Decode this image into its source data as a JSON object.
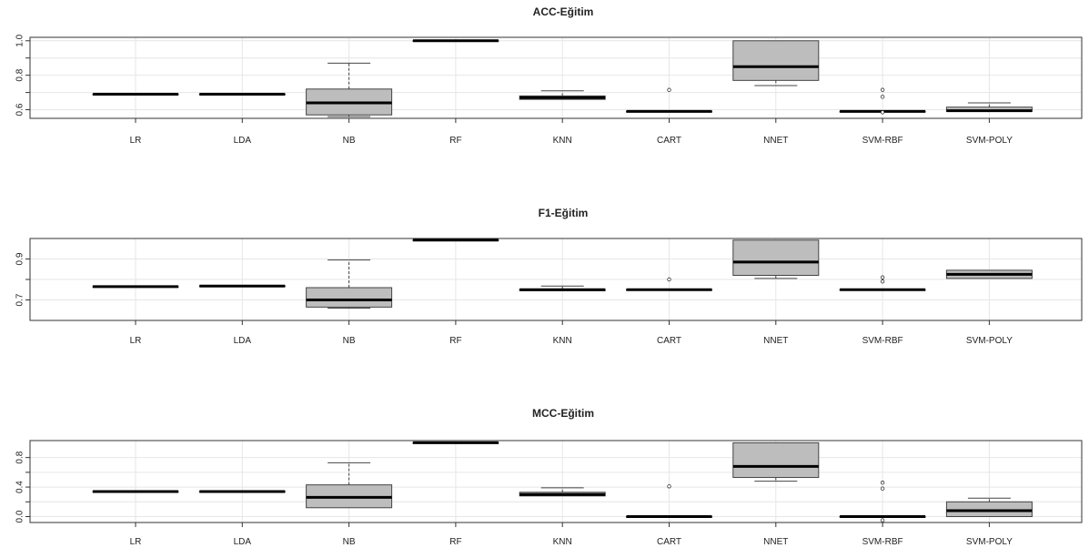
{
  "style": {
    "box_fill": "#bdbdbd",
    "box_stroke": "#444444",
    "median_color": "#000000",
    "grid_color": "#e6e6e6",
    "whisker_style": "dashed"
  },
  "chart_data": [
    {
      "type": "boxplot",
      "title": "ACC-Eğitim",
      "xlabel": "",
      "ylabel": "",
      "ylim": [
        0.55,
        1.02
      ],
      "yticks": [
        0.6,
        0.7,
        0.8,
        0.9,
        1.0
      ],
      "yticklabels": [
        "0.6",
        "",
        "0.8",
        "",
        "1.0"
      ],
      "grid": true,
      "categories": [
        "LR",
        "LDA",
        "NB",
        "RF",
        "KNN",
        "CART",
        "NNET",
        "SVM-RBF",
        "SVM-POLY"
      ],
      "boxes": [
        {
          "min": 0.69,
          "q1": 0.69,
          "median": 0.69,
          "q3": 0.69,
          "max": 0.69,
          "outliers": []
        },
        {
          "min": 0.69,
          "q1": 0.69,
          "median": 0.69,
          "q3": 0.69,
          "max": 0.69,
          "outliers": []
        },
        {
          "min": 0.56,
          "q1": 0.57,
          "median": 0.64,
          "q3": 0.72,
          "max": 0.87,
          "outliers": []
        },
        {
          "min": 1.0,
          "q1": 1.0,
          "median": 1.0,
          "q3": 1.0,
          "max": 1.0,
          "outliers": []
        },
        {
          "min": 0.66,
          "q1": 0.66,
          "median": 0.67,
          "q3": 0.68,
          "max": 0.71,
          "outliers": []
        },
        {
          "min": 0.59,
          "q1": 0.59,
          "median": 0.59,
          "q3": 0.59,
          "max": 0.59,
          "outliers": [
            0.715
          ]
        },
        {
          "min": 0.74,
          "q1": 0.77,
          "median": 0.85,
          "q3": 1.0,
          "max": 1.0,
          "outliers": []
        },
        {
          "min": 0.59,
          "q1": 0.59,
          "median": 0.59,
          "q3": 0.59,
          "max": 0.59,
          "outliers": [
            0.715,
            0.675,
            0.585
          ]
        },
        {
          "min": 0.59,
          "q1": 0.59,
          "median": 0.594,
          "q3": 0.615,
          "max": 0.64,
          "outliers": []
        }
      ]
    },
    {
      "type": "boxplot",
      "title": "F1-Eğitim",
      "xlabel": "",
      "ylabel": "",
      "ylim": [
        0.6,
        1.0
      ],
      "yticks": [
        0.7,
        0.8,
        0.9
      ],
      "yticklabels": [
        "0.7",
        "",
        "0.9"
      ],
      "grid": true,
      "categories": [
        "LR",
        "LDA",
        "NB",
        "RF",
        "KNN",
        "CART",
        "NNET",
        "SVM-RBF",
        "SVM-POLY"
      ],
      "boxes": [
        {
          "min": 0.765,
          "q1": 0.765,
          "median": 0.765,
          "q3": 0.765,
          "max": 0.765,
          "outliers": []
        },
        {
          "min": 0.768,
          "q1": 0.768,
          "median": 0.768,
          "q3": 0.768,
          "max": 0.768,
          "outliers": []
        },
        {
          "min": 0.66,
          "q1": 0.665,
          "median": 0.7,
          "q3": 0.76,
          "max": 0.895,
          "outliers": []
        },
        {
          "min": 0.992,
          "q1": 0.992,
          "median": 0.992,
          "q3": 0.992,
          "max": 0.992,
          "outliers": []
        },
        {
          "min": 0.745,
          "q1": 0.745,
          "median": 0.75,
          "q3": 0.752,
          "max": 0.768,
          "outliers": []
        },
        {
          "min": 0.75,
          "q1": 0.75,
          "median": 0.75,
          "q3": 0.75,
          "max": 0.75,
          "outliers": [
            0.8
          ]
        },
        {
          "min": 0.805,
          "q1": 0.82,
          "median": 0.885,
          "q3": 0.992,
          "max": 0.992,
          "outliers": []
        },
        {
          "min": 0.75,
          "q1": 0.75,
          "median": 0.75,
          "q3": 0.75,
          "max": 0.75,
          "outliers": [
            0.81,
            0.79
          ]
        },
        {
          "min": 0.805,
          "q1": 0.805,
          "median": 0.825,
          "q3": 0.845,
          "max": 0.845,
          "outliers": []
        }
      ]
    },
    {
      "type": "boxplot",
      "title": "MCC-Eğitim",
      "xlabel": "",
      "ylabel": "",
      "ylim": [
        -0.08,
        1.03
      ],
      "yticks": [
        0.0,
        0.2,
        0.4,
        0.6,
        0.8
      ],
      "yticklabels": [
        "0.0",
        "",
        "0.4",
        "",
        "0.8"
      ],
      "grid": true,
      "categories": [
        "LR",
        "LDA",
        "NB",
        "RF",
        "KNN",
        "CART",
        "NNET",
        "SVM-RBF",
        "SVM-POLY"
      ],
      "boxes": [
        {
          "min": 0.34,
          "q1": 0.34,
          "median": 0.34,
          "q3": 0.34,
          "max": 0.34,
          "outliers": []
        },
        {
          "min": 0.34,
          "q1": 0.34,
          "median": 0.34,
          "q3": 0.34,
          "max": 0.34,
          "outliers": []
        },
        {
          "min": 0.12,
          "q1": 0.12,
          "median": 0.26,
          "q3": 0.43,
          "max": 0.73,
          "outliers": []
        },
        {
          "min": 1.0,
          "q1": 1.0,
          "median": 1.0,
          "q3": 1.0,
          "max": 1.0,
          "outliers": []
        },
        {
          "min": 0.28,
          "q1": 0.28,
          "median": 0.3,
          "q3": 0.33,
          "max": 0.39,
          "outliers": []
        },
        {
          "min": 0.0,
          "q1": 0.0,
          "median": 0.0,
          "q3": 0.0,
          "max": 0.0,
          "outliers": [
            0.41
          ]
        },
        {
          "min": 0.48,
          "q1": 0.53,
          "median": 0.68,
          "q3": 1.0,
          "max": 1.0,
          "outliers": []
        },
        {
          "min": 0.0,
          "q1": 0.0,
          "median": 0.0,
          "q3": 0.0,
          "max": 0.0,
          "outliers": [
            0.46,
            0.38,
            -0.05
          ]
        },
        {
          "min": 0.0,
          "q1": 0.0,
          "median": 0.08,
          "q3": 0.2,
          "max": 0.25,
          "outliers": []
        }
      ]
    }
  ]
}
